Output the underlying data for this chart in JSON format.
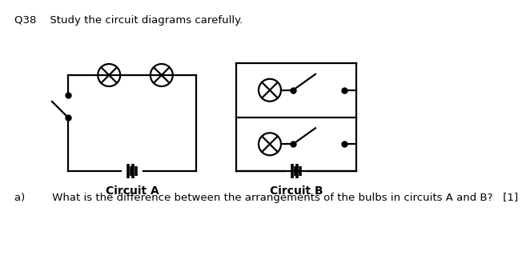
{
  "bg_color": "#ffffff",
  "title_text": "Q38    Study the circuit diagrams carefully.",
  "question_text": "a)        What is the difference between the arrangements of the bulbs in circuits A and B?   [1]",
  "label_A": "Circuit A",
  "label_B": "Circuit B",
  "title_fontsize": 9.5,
  "label_fontsize": 10,
  "question_fontsize": 9.5,
  "line_color": "#000000",
  "line_width": 1.6
}
